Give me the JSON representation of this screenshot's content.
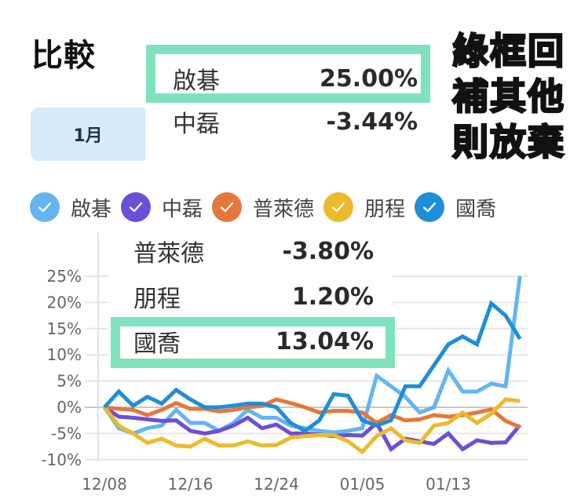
{
  "page": {
    "title": "比較",
    "range_tabs": [
      {
        "label": "1月",
        "selected": true
      }
    ],
    "callout_text": [
      "綠框回",
      "補其他",
      "則放棄"
    ]
  },
  "legend": [
    {
      "name": "啟碁",
      "color": "#64b5f0",
      "checked": true
    },
    {
      "name": "中磊",
      "color": "#6c4fd6",
      "checked": true
    },
    {
      "name": "普萊德",
      "color": "#e6773a",
      "checked": true
    },
    {
      "name": "朋程",
      "color": "#ecba2d",
      "checked": true
    },
    {
      "name": "國喬",
      "color": "#1f8ed8",
      "checked": true
    }
  ],
  "tooltip": {
    "rows": [
      {
        "name": "啟碁",
        "value": "25.00%",
        "highlighted": true
      },
      {
        "name": "中磊",
        "value": "-3.44%",
        "highlighted": false
      },
      {
        "name": "普萊德",
        "value": "-3.80%",
        "highlighted": false
      },
      {
        "name": "朋程",
        "value": "1.20%",
        "highlighted": false
      },
      {
        "name": "國喬",
        "value": "13.04%",
        "highlighted": true
      }
    ]
  },
  "highlight_color": "#7ee3bd",
  "chart_data": {
    "type": "line",
    "title": "比較",
    "xlabel": "",
    "ylabel": "",
    "ylim": [
      -10,
      25
    ],
    "yticks": [
      "25%",
      "20%",
      "15%",
      "10%",
      "5%",
      "0%",
      "-5%",
      "-10%"
    ],
    "xticks": [
      "12/08",
      "12/16",
      "12/24",
      "01/05",
      "01/13"
    ],
    "grid": true,
    "legend_position": "top",
    "x": [
      "12/08",
      "12/09",
      "12/10",
      "12/11",
      "12/12",
      "12/15",
      "12/16",
      "12/17",
      "12/18",
      "12/19",
      "12/22",
      "12/23",
      "12/24",
      "12/25",
      "12/26",
      "12/29",
      "12/30",
      "12/31",
      "01/02",
      "01/05",
      "01/06",
      "01/07",
      "01/08",
      "01/09",
      "01/12",
      "01/13",
      "01/14",
      "01/15",
      "01/16",
      "01/19"
    ],
    "series": [
      {
        "name": "啟碁",
        "color": "#64b5f0",
        "values": [
          0,
          -4,
          -5,
          -4,
          -3.5,
          -0.5,
          -3,
          -3,
          -4.5,
          -3,
          -0.5,
          -2,
          -2,
          -3.5,
          -4,
          -4.5,
          -4.8,
          -4.5,
          -4,
          6,
          4,
          2,
          -1,
          0,
          7,
          3,
          3,
          4.5,
          4,
          25
        ]
      },
      {
        "name": "中磊",
        "color": "#6c4fd6",
        "values": [
          0,
          -1.8,
          -2,
          -2.3,
          -2.6,
          -2.5,
          -4.5,
          -5,
          -4.5,
          -3.5,
          -2,
          -4,
          -3.3,
          -5,
          -5,
          -5.2,
          -5.5,
          -5.3,
          -5.4,
          -3,
          -8,
          -6,
          -6.5,
          -7,
          -5,
          -8,
          -6.3,
          -6.8,
          -6.7,
          -3.4
        ]
      },
      {
        "name": "普萊德",
        "color": "#e6773a",
        "values": [
          0,
          -0.3,
          -0.5,
          -1.5,
          -0.5,
          0.8,
          -0.3,
          -0.3,
          -0.8,
          -0.5,
          0,
          0.3,
          1.5,
          0.8,
          0,
          -1,
          -0.7,
          -0.7,
          -1,
          -3,
          -1.5,
          -2.5,
          -2.3,
          -1.5,
          -1.8,
          -1.5,
          -1,
          -0.4,
          -2.6,
          -3.8
        ]
      },
      {
        "name": "朋程",
        "color": "#ecba2d",
        "values": [
          0,
          -3.5,
          -5,
          -6.8,
          -6,
          -7.3,
          -7.5,
          -6,
          -7.3,
          -7.3,
          -6.5,
          -7.3,
          -7.2,
          -5.8,
          -5.5,
          -5.3,
          -5.3,
          -6.5,
          -8.5,
          -5.5,
          -4,
          -6.3,
          -6.8,
          -3.5,
          -3,
          -1,
          -3,
          -1.2,
          1.5,
          1.2
        ]
      },
      {
        "name": "國喬",
        "color": "#1f8ed8",
        "values": [
          0,
          3,
          0.3,
          2,
          0.7,
          3.3,
          1.5,
          0,
          0,
          0.3,
          0.7,
          0.7,
          0,
          -3,
          -4.5,
          -2.5,
          2.5,
          2.2,
          -2.5,
          -3.5,
          -2.5,
          4,
          4,
          8,
          12,
          13.5,
          12,
          19.8,
          17.5,
          13.04
        ]
      }
    ]
  }
}
